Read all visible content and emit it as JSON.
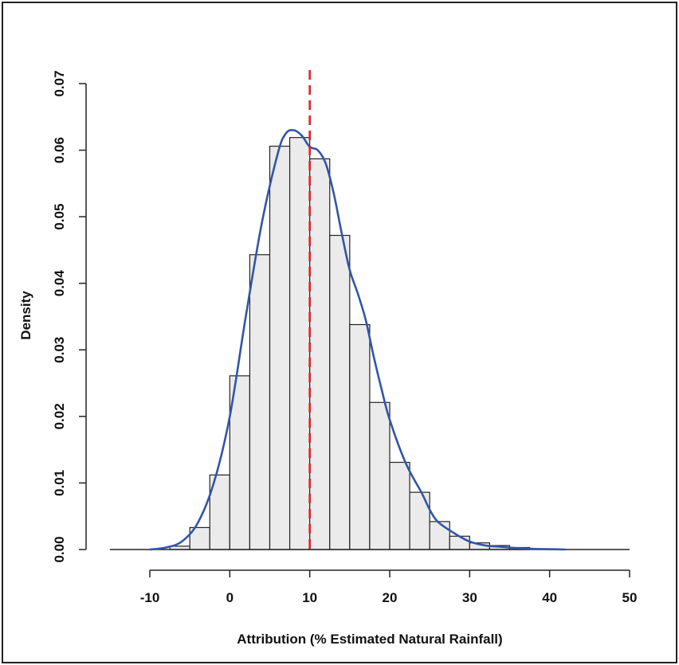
{
  "chart_data": {
    "type": "histogram",
    "title": "",
    "xlabel": "Attribution (% Estimated Natural Rainfall)",
    "ylabel": "Density",
    "xlim": [
      -15,
      50
    ],
    "ylim": [
      0,
      0.07
    ],
    "x_ticks": [
      -10,
      0,
      10,
      20,
      30,
      40,
      50
    ],
    "x_tick_labels": [
      "-10",
      "0",
      "10",
      "20",
      "30",
      "40",
      "50"
    ],
    "y_ticks": [
      0,
      0.01,
      0.02,
      0.03,
      0.04,
      0.05,
      0.06,
      0.07
    ],
    "y_tick_labels": [
      "0.00",
      "0.01",
      "0.02",
      "0.03",
      "0.04",
      "0.05",
      "0.06",
      "0.07"
    ],
    "bins": [
      {
        "x0": -7.5,
        "x1": -5,
        "density": 0.0005
      },
      {
        "x0": -5,
        "x1": -2.5,
        "density": 0.0033
      },
      {
        "x0": -2.5,
        "x1": 0,
        "density": 0.0112
      },
      {
        "x0": 0,
        "x1": 2.5,
        "density": 0.0261
      },
      {
        "x0": 2.5,
        "x1": 5,
        "density": 0.0443
      },
      {
        "x0": 5,
        "x1": 7.5,
        "density": 0.0606
      },
      {
        "x0": 7.5,
        "x1": 10,
        "density": 0.0619
      },
      {
        "x0": 10,
        "x1": 12.5,
        "density": 0.0587
      },
      {
        "x0": 12.5,
        "x1": 15,
        "density": 0.0472
      },
      {
        "x0": 15,
        "x1": 17.5,
        "density": 0.0338
      },
      {
        "x0": 17.5,
        "x1": 20,
        "density": 0.0221
      },
      {
        "x0": 20,
        "x1": 22.5,
        "density": 0.0131
      },
      {
        "x0": 22.5,
        "x1": 25,
        "density": 0.0086
      },
      {
        "x0": 25,
        "x1": 27.5,
        "density": 0.0042
      },
      {
        "x0": 27.5,
        "x1": 30,
        "density": 0.002
      },
      {
        "x0": 30,
        "x1": 32.5,
        "density": 0.001
      },
      {
        "x0": 32.5,
        "x1": 35,
        "density": 0.0006
      },
      {
        "x0": 35,
        "x1": 37.5,
        "density": 0.0003
      }
    ],
    "density_curve": {
      "color": "#3355aa",
      "x": [
        -10,
        -8,
        -6,
        -4,
        -2,
        0,
        2,
        4,
        6,
        7,
        8,
        9,
        10,
        11,
        12,
        13,
        14,
        15,
        16,
        17,
        18,
        19,
        20,
        22,
        24,
        25,
        26,
        28,
        30,
        32,
        34,
        36,
        38,
        40,
        42
      ],
      "y": [
        0.0,
        0.0003,
        0.0012,
        0.004,
        0.01,
        0.02,
        0.035,
        0.049,
        0.0595,
        0.0625,
        0.063,
        0.0622,
        0.0605,
        0.06,
        0.058,
        0.0535,
        0.0475,
        0.042,
        0.0385,
        0.0345,
        0.029,
        0.024,
        0.0195,
        0.013,
        0.0085,
        0.006,
        0.0042,
        0.0025,
        0.0012,
        0.0006,
        0.0004,
        0.0002,
        0.0001,
        5e-05,
        0.0
      ]
    },
    "reference_line": {
      "x": 10,
      "color": "#e0202a",
      "style": "dashed"
    },
    "bar_fill": "#ebebeb",
    "bar_stroke": "#222222",
    "grid": false,
    "legend": "none"
  }
}
